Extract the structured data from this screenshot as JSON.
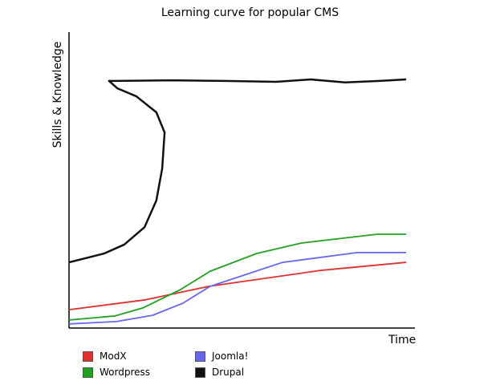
{
  "chart_data": {
    "type": "line",
    "title": "Learning curve for popular CMS",
    "xlabel": "Time",
    "ylabel": "Skills & Knowledge",
    "xlim": [
      0,
      100
    ],
    "ylim": [
      0,
      100
    ],
    "grid": false,
    "legend_position": "bottom",
    "series": [
      {
        "name": "ModX",
        "color": "#e03030",
        "points": [
          [
            0,
            6.2
          ],
          [
            21.9,
            9.5
          ],
          [
            40.5,
            14.1
          ],
          [
            73.0,
            19.5
          ],
          [
            97.7,
            22.2
          ]
        ]
      },
      {
        "name": "Wordpress",
        "color": "#22a022",
        "points": [
          [
            0,
            2.7
          ],
          [
            13.3,
            4.1
          ],
          [
            21.4,
            6.8
          ],
          [
            32.3,
            13.0
          ],
          [
            40.9,
            19.2
          ],
          [
            54.4,
            25.2
          ],
          [
            67.2,
            28.7
          ],
          [
            89.3,
            31.7
          ],
          [
            97.7,
            31.7
          ]
        ]
      },
      {
        "name": "Joomla!",
        "color": "#6666ee",
        "points": [
          [
            0,
            1.4
          ],
          [
            13.7,
            2.2
          ],
          [
            24.2,
            4.3
          ],
          [
            33.0,
            8.4
          ],
          [
            40.9,
            14.1
          ],
          [
            61.9,
            22.2
          ],
          [
            83.5,
            25.5
          ],
          [
            97.7,
            25.5
          ]
        ]
      },
      {
        "name": "Drupal",
        "color": "#111111",
        "points": [
          [
            0,
            22.2
          ],
          [
            10.2,
            25.2
          ],
          [
            16.0,
            28.2
          ],
          [
            21.9,
            34.1
          ],
          [
            25.3,
            43.1
          ],
          [
            27.0,
            53.9
          ],
          [
            27.7,
            66.1
          ],
          [
            25.3,
            72.9
          ],
          [
            19.5,
            78.3
          ],
          [
            14.0,
            81.0
          ],
          [
            11.6,
            83.5
          ],
          [
            14.0,
            83.5
          ],
          [
            30,
            83.7
          ],
          [
            45,
            83.5
          ],
          [
            60,
            83.2
          ],
          [
            70,
            84.0
          ],
          [
            80,
            83.0
          ],
          [
            90,
            83.5
          ],
          [
            97.7,
            84.0
          ]
        ]
      }
    ]
  }
}
